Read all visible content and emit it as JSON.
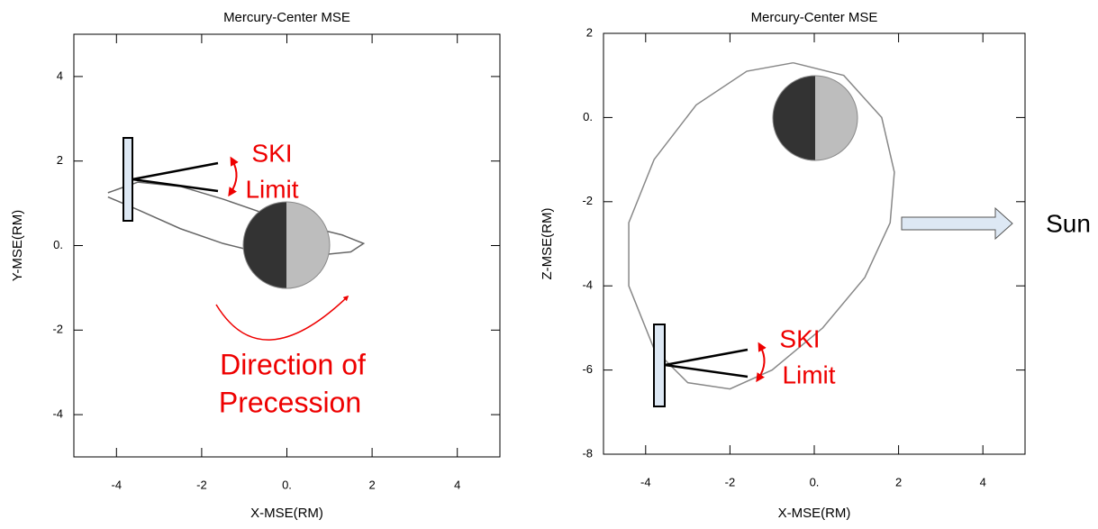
{
  "chart_data": [
    {
      "type": "line",
      "title": "Mercury-Center MSE",
      "xlabel": "X-MSE(RM)",
      "ylabel": "Y-MSE(RM)",
      "xlim": [
        -5,
        5
      ],
      "ylim": [
        -5,
        5
      ],
      "xticks": [
        -4,
        -2,
        {
          "value": 0,
          "label": "0."
        },
        2,
        4
      ],
      "yticks": [
        -4,
        -2,
        {
          "value": 0,
          "label": "0."
        },
        2,
        4
      ],
      "series": [
        {
          "color": "#666666",
          "x": [
            -4.2,
            -3.5,
            -2.5,
            -1.5,
            -0.5,
            0.5,
            1.3,
            1.8,
            1.5,
            0.5,
            -0.5,
            -1.5,
            -2.5,
            -3.5,
            -4.2
          ],
          "values": [
            1.25,
            1.5,
            1.4,
            1.1,
            0.75,
            0.45,
            0.25,
            0.05,
            -0.15,
            -0.25,
            -0.2,
            0.05,
            0.4,
            0.85,
            1.15
          ]
        }
      ],
      "annotations": [
        "SKI",
        "Limit",
        "Direction of",
        "Precession"
      ]
    },
    {
      "type": "line",
      "title": "Mercury-Center MSE",
      "xlabel": "X-MSE(RM)",
      "ylabel": "Z-MSE(RM)",
      "xlim": [
        -5,
        5
      ],
      "ylim": [
        -8,
        2
      ],
      "xticks": [
        -4,
        -2,
        {
          "value": 0,
          "label": "0."
        },
        2,
        4
      ],
      "yticks": [
        -8,
        -6,
        -4,
        -2,
        {
          "value": 0,
          "label": "0."
        },
        2
      ],
      "series": [
        {
          "color": "#888888",
          "x": [
            -0.5,
            0.7,
            1.6,
            1.9,
            1.8,
            1.2,
            0.2,
            -1,
            -2,
            -3,
            -3.8,
            -4.4,
            -4.4,
            -3.8,
            -2.8,
            -1.6,
            -0.5
          ],
          "values": [
            1.3,
            1.0,
            0,
            -1.3,
            -2.5,
            -3.8,
            -5,
            -6,
            -6.45,
            -6.3,
            -5.5,
            -4,
            -2.5,
            -1,
            0.3,
            1.1,
            1.3
          ]
        }
      ],
      "annotations": [
        "SKI",
        "Limit",
        "Sun"
      ]
    }
  ]
}
